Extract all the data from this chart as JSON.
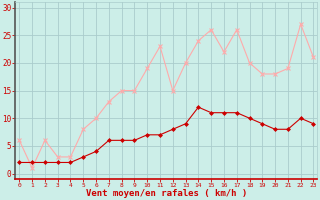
{
  "hours": [
    0,
    1,
    2,
    3,
    4,
    5,
    6,
    7,
    8,
    9,
    10,
    11,
    12,
    13,
    14,
    15,
    16,
    17,
    18,
    19,
    20,
    21,
    22,
    23
  ],
  "vent_moyen": [
    2,
    2,
    2,
    2,
    2,
    3,
    4,
    6,
    6,
    6,
    7,
    7,
    8,
    9,
    12,
    11,
    11,
    11,
    10,
    9,
    8,
    8,
    10,
    9
  ],
  "rafales": [
    6,
    1,
    6,
    3,
    3,
    8,
    10,
    13,
    15,
    15,
    19,
    23,
    15,
    20,
    24,
    26,
    22,
    26,
    20,
    18,
    18,
    19,
    27,
    21
  ],
  "bg_color": "#cceee8",
  "grid_color": "#aacccc",
  "line_moyen_color": "#cc0000",
  "line_rafales_color": "#ffaaaa",
  "xlabel": "Vent moyen/en rafales ( km/h )",
  "xlabel_color": "#cc0000",
  "tick_color": "#cc0000",
  "spine_color": "#888888",
  "ylim": [
    -1,
    31
  ],
  "yticks": [
    0,
    5,
    10,
    15,
    20,
    25,
    30
  ],
  "xlim": [
    -0.3,
    23.3
  ]
}
